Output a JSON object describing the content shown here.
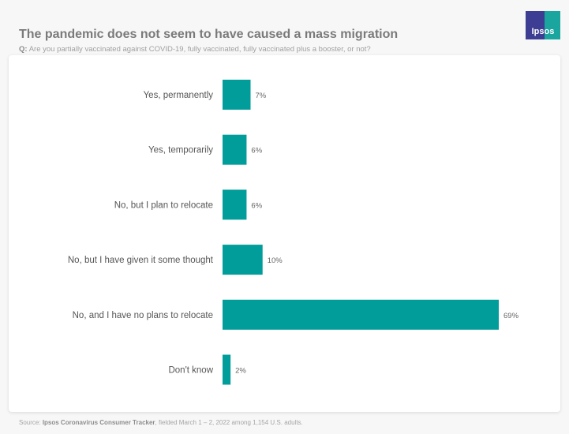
{
  "header": {
    "title": "The pandemic does not seem to have caused a mass migration",
    "question_prefix": "Q:",
    "question": "Are you partially vaccinated against COVID-19, fully vaccinated, fully vaccinated plus a booster, or not?",
    "logo_text": "Ipsos"
  },
  "footer": {
    "prefix": "Source:",
    "source_name": "Ipsos Coronavirus Consumer Tracker",
    "details": ", fielded March 1 – 2, 2022 among 1,154 U.S. adults."
  },
  "chart_data": {
    "type": "bar",
    "orientation": "horizontal",
    "categories": [
      "Yes, permanently",
      "Yes, temporarily",
      "No, but I plan to relocate",
      "No, but I have given it some thought",
      "No, and I have no plans to relocate",
      "Don't know"
    ],
    "values": [
      7,
      6,
      6,
      10,
      69,
      2
    ],
    "labels": [
      "7%",
      "6%",
      "6%",
      "10%",
      "69%",
      "2%"
    ],
    "unit": "%",
    "bar_color": "#009d9a",
    "grid": false,
    "xlim": [
      0,
      69
    ]
  }
}
